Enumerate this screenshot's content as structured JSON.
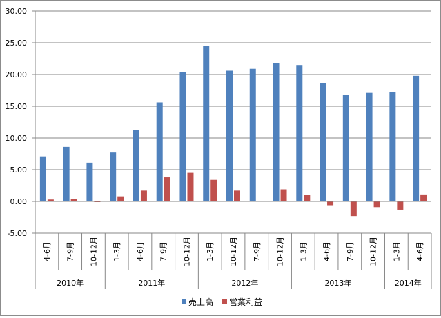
{
  "chart_data": {
    "type": "bar",
    "title": "",
    "xlabel": "",
    "ylabel": "",
    "ylim": [
      -5,
      30
    ],
    "y_ticks": [
      "-5.00",
      "0.00",
      "5.00",
      "10.00",
      "15.00",
      "20.00",
      "25.00",
      "30.00"
    ],
    "grid": true,
    "legend_position": "bottom",
    "categories": [
      "4-6月",
      "7-9月",
      "10-12月",
      "1-3月",
      "4-6月",
      "7-9月",
      "10-12月",
      "1-3月",
      "10-12月",
      "7-9月",
      "10-12月",
      "1-3月",
      "4-6月",
      "7-9月",
      "10-12月",
      "1-3月",
      "4-6月"
    ],
    "groups": [
      {
        "label": "2010年",
        "count": 3
      },
      {
        "label": "2011年",
        "count": 4
      },
      {
        "label": "2012年",
        "count": 4
      },
      {
        "label": "2013年",
        "count": 4
      },
      {
        "label": "2014年",
        "count": 2
      }
    ],
    "series": [
      {
        "name": "売上高",
        "color": "#4f81bd",
        "values": [
          7.1,
          8.6,
          6.1,
          7.7,
          11.2,
          15.6,
          20.4,
          24.5,
          20.6,
          20.9,
          21.8,
          21.5,
          18.6,
          16.8,
          17.1,
          17.2,
          19.8
        ]
      },
      {
        "name": "営業利益",
        "color": "#c0504d",
        "values": [
          0.3,
          0.4,
          -0.1,
          0.8,
          1.7,
          3.8,
          4.5,
          3.4,
          1.7,
          0.0,
          1.9,
          1.0,
          -0.6,
          -2.3,
          -0.9,
          -1.3,
          1.1
        ]
      }
    ]
  }
}
